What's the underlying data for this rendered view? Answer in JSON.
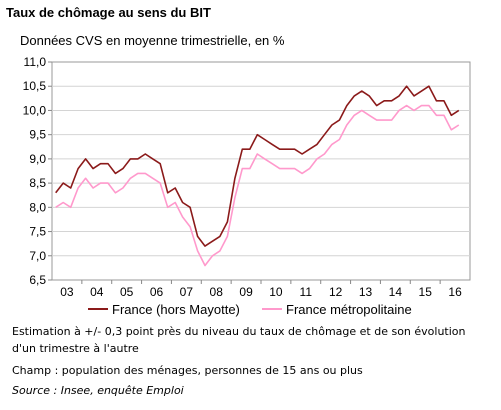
{
  "header": {
    "title": "Taux de chômage au sens du BIT",
    "subtitle": "Données CVS en moyenne trimestrielle, en %"
  },
  "notes": {
    "estimation": "Estimation à +/- 0,3 point près du niveau du taux de chômage et de son évolution d'un trimestre à l'autre",
    "champ": "Champ : population des ménages, personnes de 15 ans ou plus",
    "source": "Source : Insee, enquête Emploi"
  },
  "chart_data": {
    "type": "line",
    "title": "Taux de chômage au sens du BIT",
    "subtitle": "Données CVS en moyenne trimestrielle, en %",
    "xlabel": "",
    "ylabel": "",
    "ylim": [
      6.5,
      11.0
    ],
    "yticks": [
      "6,5",
      "7,0",
      "7,5",
      "8,0",
      "8,5",
      "9,0",
      "9,5",
      "10,0",
      "10,5",
      "11,0"
    ],
    "xticks": [
      "03",
      "04",
      "05",
      "06",
      "07",
      "08",
      "09",
      "10",
      "11",
      "12",
      "13",
      "14",
      "15",
      "16"
    ],
    "grid": true,
    "legend_position": "bottom",
    "x": [
      "2003 T1",
      "2003 T2",
      "2003 T3",
      "2003 T4",
      "2004 T1",
      "2004 T2",
      "2004 T3",
      "2004 T4",
      "2005 T1",
      "2005 T2",
      "2005 T3",
      "2005 T4",
      "2006 T1",
      "2006 T2",
      "2006 T3",
      "2006 T4",
      "2007 T1",
      "2007 T2",
      "2007 T3",
      "2007 T4",
      "2008 T1",
      "2008 T2",
      "2008 T3",
      "2008 T4",
      "2009 T1",
      "2009 T2",
      "2009 T3",
      "2009 T4",
      "2010 T1",
      "2010 T2",
      "2010 T3",
      "2010 T4",
      "2011 T1",
      "2011 T2",
      "2011 T3",
      "2011 T4",
      "2012 T1",
      "2012 T2",
      "2012 T3",
      "2012 T4",
      "2013 T1",
      "2013 T2",
      "2013 T3",
      "2013 T4",
      "2014 T1",
      "2014 T2",
      "2014 T3",
      "2014 T4",
      "2015 T1",
      "2015 T2",
      "2015 T3",
      "2015 T4",
      "2016 T1",
      "2016 T2",
      "2016 T3"
    ],
    "series": [
      {
        "name": "France (hors Mayotte)",
        "color": "#8b1a1a",
        "values": [
          8.3,
          8.5,
          8.4,
          8.8,
          9.0,
          8.8,
          8.9,
          8.9,
          8.7,
          8.8,
          9.0,
          9.0,
          9.1,
          9.0,
          8.9,
          8.3,
          8.4,
          8.1,
          8.0,
          7.4,
          7.2,
          7.3,
          7.4,
          7.7,
          8.6,
          9.2,
          9.2,
          9.5,
          9.4,
          9.3,
          9.2,
          9.2,
          9.2,
          9.1,
          9.2,
          9.3,
          9.5,
          9.7,
          9.8,
          10.1,
          10.3,
          10.4,
          10.3,
          10.1,
          10.2,
          10.2,
          10.3,
          10.5,
          10.3,
          10.4,
          10.5,
          10.2,
          10.2,
          9.9,
          10.0
        ]
      },
      {
        "name": "France métropolitaine",
        "color": "#ff99cc",
        "values": [
          8.0,
          8.1,
          8.0,
          8.4,
          8.6,
          8.4,
          8.5,
          8.5,
          8.3,
          8.4,
          8.6,
          8.7,
          8.7,
          8.6,
          8.5,
          8.0,
          8.1,
          7.8,
          7.6,
          7.1,
          6.8,
          7.0,
          7.1,
          7.4,
          8.2,
          8.8,
          8.8,
          9.1,
          9.0,
          8.9,
          8.8,
          8.8,
          8.8,
          8.7,
          8.8,
          9.0,
          9.1,
          9.3,
          9.4,
          9.7,
          9.9,
          10.0,
          9.9,
          9.8,
          9.8,
          9.8,
          10.0,
          10.1,
          10.0,
          10.1,
          10.1,
          9.9,
          9.9,
          9.6,
          9.7
        ]
      }
    ]
  }
}
